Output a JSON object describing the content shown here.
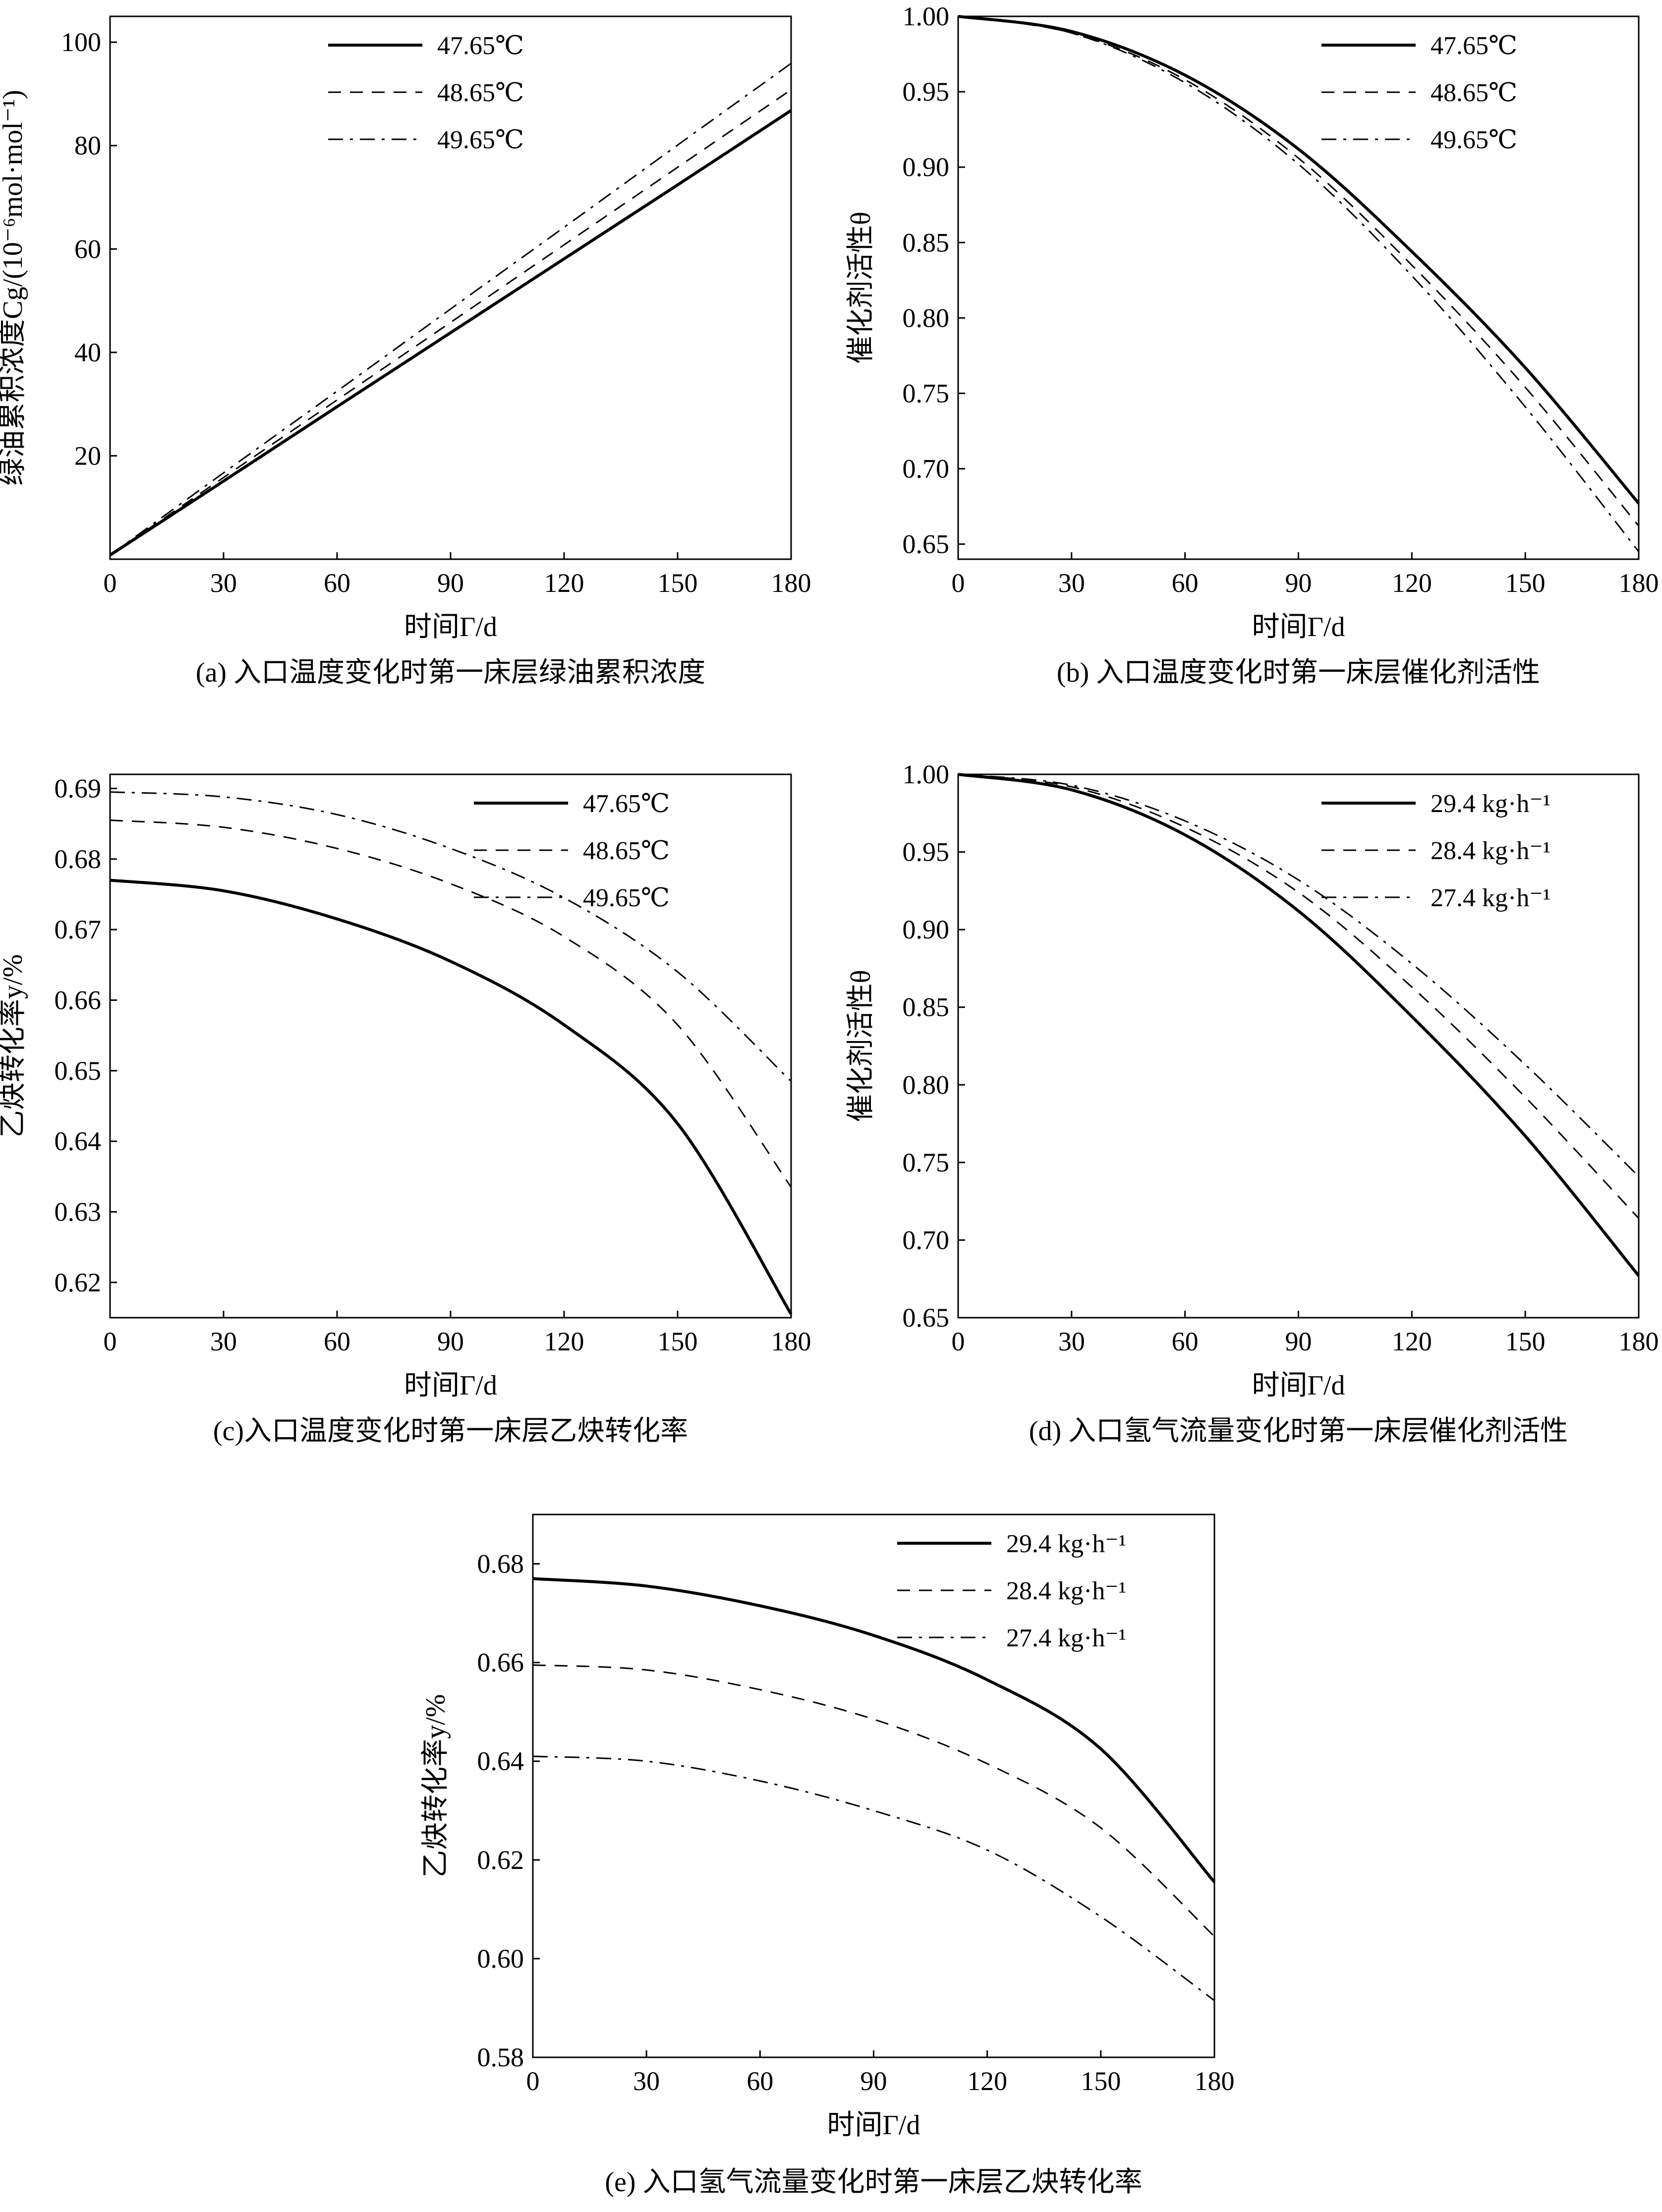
{
  "chart_data": [
    {
      "id": "a",
      "type": "line",
      "caption": "(a) 入口温度变化时第一床层绿油累积浓度",
      "xlabel": "时间Γ/d",
      "ylabel": "绿油累积浓度Cg/(10⁻⁶mol·mol⁻¹)",
      "xlim": [
        0,
        180
      ],
      "ylim": [
        0,
        105
      ],
      "xticks": [
        0,
        30,
        60,
        90,
        120,
        150,
        180
      ],
      "yticks": [
        20,
        40,
        60,
        80,
        100
      ],
      "ytick_labels": [
        "20",
        "40",
        "60",
        "80",
        "100"
      ],
      "legend_position": "top-left",
      "x": [
        0,
        30,
        60,
        90,
        120,
        150,
        180
      ],
      "series": [
        {
          "name": "47.65℃",
          "style": "solid",
          "values": [
            0.8,
            15.1,
            29.5,
            43.8,
            58.1,
            72.4,
            86.8
          ]
        },
        {
          "name": "48.65℃",
          "style": "dashed",
          "values": [
            0.8,
            15.8,
            30.8,
            45.8,
            60.8,
            75.8,
            90.8
          ]
        },
        {
          "name": "49.65℃",
          "style": "dashdot",
          "values": [
            0.8,
            16.7,
            32.5,
            48.4,
            64.2,
            80.1,
            95.9
          ]
        }
      ]
    },
    {
      "id": "b",
      "type": "line",
      "caption": "(b) 入口温度变化时第一床层催化剂活性",
      "xlabel": "时间Γ/d",
      "ylabel": "催化剂活性θ",
      "xlim": [
        0,
        180
      ],
      "ylim": [
        0.64,
        1.0
      ],
      "xticks": [
        0,
        30,
        60,
        90,
        120,
        150,
        180
      ],
      "yticks": [
        0.65,
        0.7,
        0.75,
        0.8,
        0.85,
        0.9,
        0.95,
        1.0
      ],
      "ytick_labels": [
        "0.65",
        "0.70",
        "0.75",
        "0.80",
        "0.85",
        "0.90",
        "0.95",
        "1.00"
      ],
      "legend_position": "top-right",
      "x": [
        0,
        30,
        60,
        90,
        120,
        150,
        180
      ],
      "series": [
        {
          "name": "47.65℃",
          "style": "solid",
          "values": [
            1.0,
            0.99,
            0.961,
            0.912,
            0.844,
            0.767,
            0.677
          ]
        },
        {
          "name": "48.65℃",
          "style": "dashed",
          "values": [
            1.0,
            0.989,
            0.958,
            0.906,
            0.835,
            0.754,
            0.662
          ]
        },
        {
          "name": "49.65℃",
          "style": "dashdot",
          "values": [
            1.0,
            0.989,
            0.956,
            0.902,
            0.828,
            0.741,
            0.645
          ]
        }
      ]
    },
    {
      "id": "c",
      "type": "line",
      "caption": "(c)入口温度变化时第一床层乙炔转化率",
      "xlabel": "时间Γ/d",
      "ylabel": "乙炔转化率y/%",
      "xlim": [
        0,
        180
      ],
      "ylim": [
        0.615,
        0.692
      ],
      "xticks": [
        0,
        30,
        60,
        90,
        120,
        150,
        180
      ],
      "yticks": [
        0.62,
        0.63,
        0.64,
        0.65,
        0.66,
        0.67,
        0.68,
        0.69
      ],
      "ytick_labels": [
        "0.62",
        "0.63",
        "0.64",
        "0.65",
        "0.66",
        "0.67",
        "0.68",
        "0.69"
      ],
      "legend_position": "top-right",
      "x": [
        0,
        30,
        60,
        90,
        120,
        150,
        180
      ],
      "series": [
        {
          "name": "47.65℃",
          "style": "solid",
          "values": [
            0.677,
            0.6755,
            0.6715,
            0.6655,
            0.6565,
            0.6425,
            0.6155
          ]
        },
        {
          "name": "48.65℃",
          "style": "dashed",
          "values": [
            0.6855,
            0.6845,
            0.6815,
            0.6765,
            0.669,
            0.6565,
            0.6335
          ]
        },
        {
          "name": "49.65℃",
          "style": "dashdot",
          "values": [
            0.6895,
            0.6888,
            0.6863,
            0.6815,
            0.6745,
            0.664,
            0.6485
          ]
        }
      ]
    },
    {
      "id": "d",
      "type": "line",
      "caption": "(d) 入口氢气流量变化时第一床层催化剂活性",
      "xlabel": "时间Γ/d",
      "ylabel": "催化剂活性θ",
      "xlim": [
        0,
        180
      ],
      "ylim": [
        0.65,
        1.0
      ],
      "xticks": [
        0,
        30,
        60,
        90,
        120,
        150,
        180
      ],
      "yticks": [
        0.65,
        0.7,
        0.75,
        0.8,
        0.85,
        0.9,
        0.95,
        1.0
      ],
      "ytick_labels": [
        "0.65",
        "0.70",
        "0.75",
        "0.80",
        "0.85",
        "0.90",
        "0.95",
        "1.00"
      ],
      "legend_position": "top-right",
      "x": [
        0,
        30,
        60,
        90,
        120,
        150,
        180
      ],
      "series": [
        {
          "name": "29.4 kg·h⁻¹",
          "style": "solid",
          "values": [
            1.0,
            0.99,
            0.961,
            0.912,
            0.844,
            0.767,
            0.677
          ]
        },
        {
          "name": "28.4 kg·h⁻¹",
          "style": "dashed",
          "values": [
            1.0,
            0.992,
            0.966,
            0.924,
            0.863,
            0.792,
            0.714
          ]
        },
        {
          "name": "27.4 kg·h⁻¹",
          "style": "dashdot",
          "values": [
            1.0,
            0.993,
            0.97,
            0.932,
            0.878,
            0.813,
            0.741
          ]
        }
      ]
    },
    {
      "id": "e",
      "type": "line",
      "caption": "(e) 入口氢气流量变化时第一床层乙炔转化率",
      "xlabel": "时间Γ/d",
      "ylabel": "乙炔转化率y/%",
      "xlim": [
        0,
        180
      ],
      "ylim": [
        0.58,
        0.69
      ],
      "xticks": [
        0,
        30,
        60,
        90,
        120,
        150,
        180
      ],
      "yticks": [
        0.58,
        0.6,
        0.62,
        0.64,
        0.66,
        0.68
      ],
      "ytick_labels": [
        "0.58",
        "0.60",
        "0.62",
        "0.64",
        "0.66",
        "0.68"
      ],
      "legend_position": "top-right",
      "x": [
        0,
        30,
        60,
        90,
        120,
        150,
        180
      ],
      "series": [
        {
          "name": "29.4 kg·h⁻¹",
          "style": "solid",
          "values": [
            0.677,
            0.6755,
            0.6715,
            0.6655,
            0.6565,
            0.6425,
            0.6155
          ]
        },
        {
          "name": "28.4 kg·h⁻¹",
          "style": "dashed",
          "values": [
            0.6595,
            0.6585,
            0.6545,
            0.6485,
            0.6395,
            0.6265,
            0.6045
          ]
        },
        {
          "name": "27.4 kg·h⁻¹",
          "style": "dashdot",
          "values": [
            0.641,
            0.64,
            0.636,
            0.63,
            0.622,
            0.6085,
            0.5915
          ]
        }
      ]
    }
  ]
}
